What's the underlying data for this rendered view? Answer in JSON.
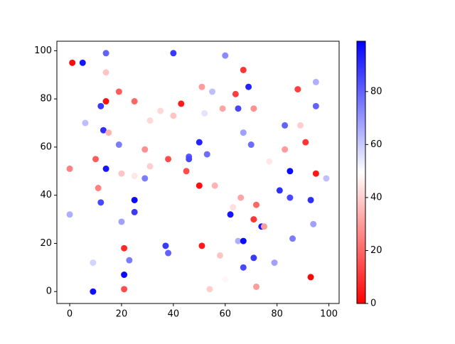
{
  "chart_data": {
    "type": "scatter",
    "x": [
      1,
      5,
      14,
      40,
      60,
      67,
      14,
      51,
      55,
      69,
      88,
      95,
      19,
      64,
      25,
      43,
      14,
      12,
      35,
      40,
      59,
      65,
      71,
      95,
      52,
      6,
      31,
      83,
      89,
      13,
      15,
      67,
      19,
      70,
      91,
      50,
      29,
      83,
      46,
      46,
      53,
      10,
      38,
      77,
      31,
      0,
      14,
      85,
      45,
      20,
      25,
      29,
      95,
      99,
      50,
      56,
      11,
      81,
      66,
      85,
      25,
      93,
      12,
      72,
      63,
      25,
      0,
      62,
      20,
      71,
      94,
      74,
      75,
      86,
      65,
      67,
      37,
      51,
      21,
      38,
      58,
      71,
      23,
      9,
      79,
      67,
      21,
      93,
      60,
      72,
      21,
      54,
      9
    ],
    "y": [
      95,
      95,
      99,
      99,
      98,
      92,
      91,
      85,
      83,
      85,
      84,
      87,
      83,
      82,
      79,
      78,
      79,
      77,
      75,
      73,
      76,
      76,
      76,
      77,
      74,
      70,
      71,
      69,
      69,
      67,
      66,
      66,
      61,
      61,
      62,
      62,
      59,
      59,
      56,
      55,
      57,
      55,
      55,
      54,
      52,
      51,
      51,
      50,
      50,
      49,
      48,
      47,
      49,
      47,
      44,
      44,
      43,
      42,
      39,
      39,
      38,
      38,
      37,
      36,
      35,
      33,
      32,
      32,
      29,
      30,
      28,
      27,
      27,
      22,
      21,
      21,
      19,
      19,
      18,
      16,
      15,
      14,
      13,
      12,
      12,
      10,
      7,
      6,
      5,
      2,
      1,
      1,
      0
    ],
    "c": [
      2,
      95,
      80,
      88,
      72,
      10,
      38,
      30,
      62,
      92,
      12,
      65,
      18,
      12,
      20,
      5,
      3,
      88,
      42,
      38,
      32,
      85,
      28,
      80,
      55,
      62,
      42,
      80,
      40,
      90,
      35,
      68,
      75,
      78,
      10,
      92,
      28,
      30,
      82,
      85,
      78,
      18,
      15,
      45,
      40,
      25,
      95,
      97,
      15,
      38,
      45,
      75,
      5,
      62,
      3,
      35,
      25,
      90,
      32,
      85,
      97,
      90,
      85,
      20,
      43,
      88,
      65,
      95,
      68,
      10,
      68,
      95,
      30,
      75,
      65,
      97,
      88,
      5,
      8,
      80,
      38,
      88,
      75,
      58,
      68,
      85,
      97,
      1,
      48,
      30,
      15,
      40,
      96
    ],
    "colormap": "bwr",
    "clim": [
      0,
      99
    ],
    "cticks": [
      0,
      20,
      40,
      60,
      80
    ],
    "xlim": [
      -4.95,
      103.95
    ],
    "ylim": [
      -4.95,
      103.95
    ],
    "xticks": [
      0,
      20,
      40,
      60,
      80,
      100
    ],
    "yticks": [
      0,
      20,
      40,
      60,
      80,
      100
    ]
  }
}
